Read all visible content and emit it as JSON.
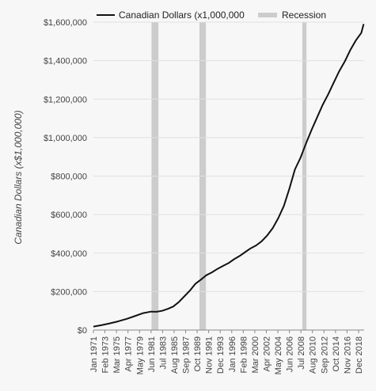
{
  "chart_data": {
    "type": "line",
    "title": "",
    "ylabel": "Canadian Dollars (x$1,000,000)",
    "xlabel": "",
    "ylim": [
      0,
      1600000
    ],
    "xlim": [
      "1971-01",
      "2019-12"
    ],
    "grid": true,
    "legend_position": "top",
    "y_ticks": [
      "$0",
      "$200,000",
      "$400,000",
      "$600,000",
      "$800,000",
      "$1,000,000",
      "$1,200,000",
      "$1,400,000",
      "$1,600,000"
    ],
    "y_tick_values": [
      0,
      200000,
      400000,
      600000,
      800000,
      1000000,
      1200000,
      1400000,
      1600000
    ],
    "x_ticks": [
      "Jan 1971",
      "Feb 1973",
      "Mar 1975",
      "Apr 1977",
      "May 1979",
      "Jun 1981",
      "Jul 1983",
      "Aug 1985",
      "Sep 1987",
      "Oct 1989",
      "Nov 1991",
      "Dec 1993",
      "Jan 1996",
      "Feb 1998",
      "Mar 2000",
      "Apr 2002",
      "May 2004",
      "Jun 2006",
      "Jul 2008",
      "Aug 2010",
      "Sep 2012",
      "Oct 2014",
      "Nov 2016",
      "Dec 2018"
    ],
    "series": [
      {
        "name": "Canadian Dollars (x1,000,000",
        "color": "#111111",
        "x": [
          "1971-01",
          "1972-06",
          "1974-01",
          "1975-06",
          "1977-01",
          "1978-06",
          "1980-01",
          "1981-06",
          "1982-06",
          "1983-06",
          "1984-06",
          "1985-06",
          "1986-06",
          "1987-06",
          "1988-06",
          "1989-06",
          "1990-06",
          "1991-06",
          "1992-06",
          "1993-06",
          "1994-06",
          "1995-06",
          "1996-06",
          "1997-06",
          "1998-06",
          "1999-06",
          "2000-06",
          "2001-06",
          "2002-06",
          "2003-06",
          "2004-06",
          "2005-06",
          "2006-06",
          "2007-06",
          "2008-06",
          "2009-06",
          "2010-06",
          "2011-06",
          "2012-06",
          "2013-06",
          "2014-06",
          "2015-06",
          "2016-06",
          "2017-06",
          "2018-06",
          "2019-06",
          "2019-11"
        ],
        "values": [
          18000,
          25000,
          35000,
          45000,
          58000,
          72000,
          88000,
          96000,
          95000,
          100000,
          110000,
          122000,
          145000,
          175000,
          205000,
          240000,
          262000,
          285000,
          300000,
          318000,
          333000,
          348000,
          368000,
          385000,
          405000,
          425000,
          440000,
          462000,
          492000,
          530000,
          582000,
          645000,
          735000,
          835000,
          895000,
          970000,
          1040000,
          1105000,
          1170000,
          1225000,
          1285000,
          1345000,
          1395000,
          1455000,
          1505000,
          1545000,
          1590000
        ]
      }
    ],
    "recessions": [
      {
        "start": "1981-07",
        "end": "1982-10",
        "color": "#cccccc"
      },
      {
        "start": "1990-03",
        "end": "1991-05",
        "color": "#cccccc"
      },
      {
        "start": "2008-10",
        "end": "2009-07",
        "color": "#cccccc"
      }
    ],
    "legend": [
      {
        "label": "Canadian Dollars (x1,000,000",
        "kind": "line",
        "color": "#111111"
      },
      {
        "label": "Recession",
        "kind": "band",
        "color": "#cccccc"
      }
    ]
  }
}
